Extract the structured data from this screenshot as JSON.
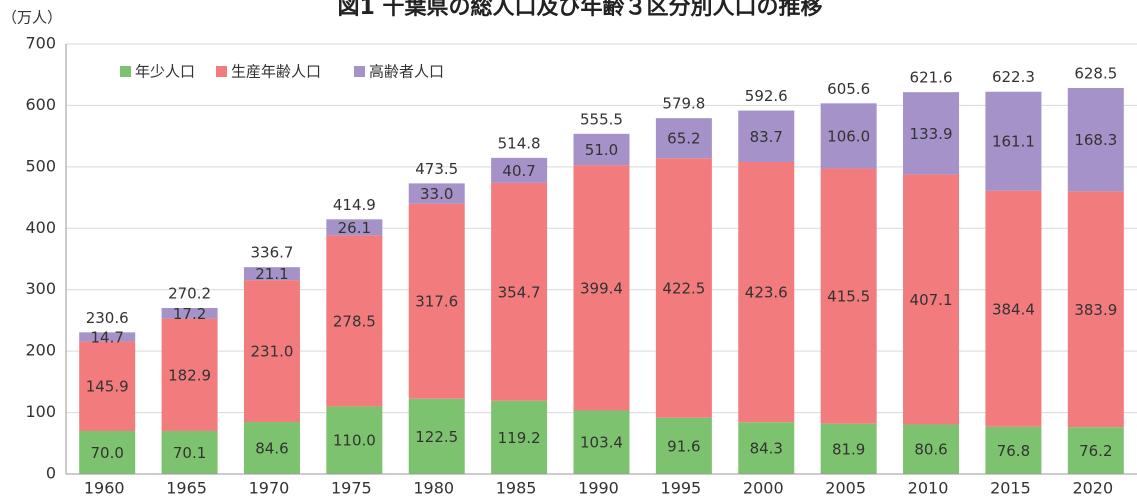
{
  "chart_data": {
    "type": "stacked_bar",
    "title": "図1 千葉県の総人口及び年齢３区分別人口の推移",
    "y_label": "（万人）",
    "categories": [
      "1960",
      "1965",
      "1970",
      "1975",
      "1980",
      "1985",
      "1990",
      "1995",
      "2000",
      "2005",
      "2010",
      "2015",
      "2020"
    ],
    "series": [
      {
        "name": "年少人口",
        "color": "#7dc36f",
        "values": [
          70.0,
          70.1,
          84.6,
          110.0,
          122.5,
          119.2,
          103.4,
          91.6,
          84.3,
          81.9,
          80.6,
          76.8,
          76.2
        ],
        "value_labels": [
          "70.0",
          "70.1",
          "84.6",
          "110.0",
          "122.5",
          "119.2",
          "103.4",
          "91.6",
          "84.3",
          "81.9",
          "80.6",
          "76.8",
          "76.2"
        ]
      },
      {
        "name": "生産年齢人口",
        "color": "#f27b7e",
        "values": [
          145.9,
          182.9,
          231.0,
          278.5,
          317.6,
          354.7,
          399.4,
          422.5,
          423.6,
          415.5,
          407.1,
          384.4,
          383.9
        ],
        "value_labels": [
          "145.9",
          "182.9",
          "231.0",
          "278.5",
          "317.6",
          "354.7",
          "399.4",
          "422.5",
          "423.6",
          "415.5",
          "407.1",
          "384.4",
          "383.9"
        ]
      },
      {
        "name": "高齢者人口",
        "color": "#a592c9",
        "values": [
          14.7,
          17.2,
          21.1,
          26.1,
          33.0,
          40.7,
          51.0,
          65.2,
          83.7,
          106.0,
          133.9,
          161.1,
          168.3
        ],
        "value_labels": [
          "14.7",
          "17.2",
          "21.1",
          "26.1",
          "33.0",
          "40.7",
          "51.0",
          "65.2",
          "83.7",
          "106.0",
          "133.9",
          "161.1",
          "168.3"
        ]
      }
    ],
    "totals": [
      230.6,
      270.2,
      336.7,
      414.9,
      473.5,
      514.8,
      555.5,
      579.8,
      592.6,
      605.6,
      621.6,
      622.3,
      628.5
    ],
    "ylim": [
      0,
      700
    ],
    "yticks": [
      0,
      100,
      200,
      300,
      400,
      500,
      600,
      700
    ],
    "grid": true,
    "legend": "top-left"
  }
}
